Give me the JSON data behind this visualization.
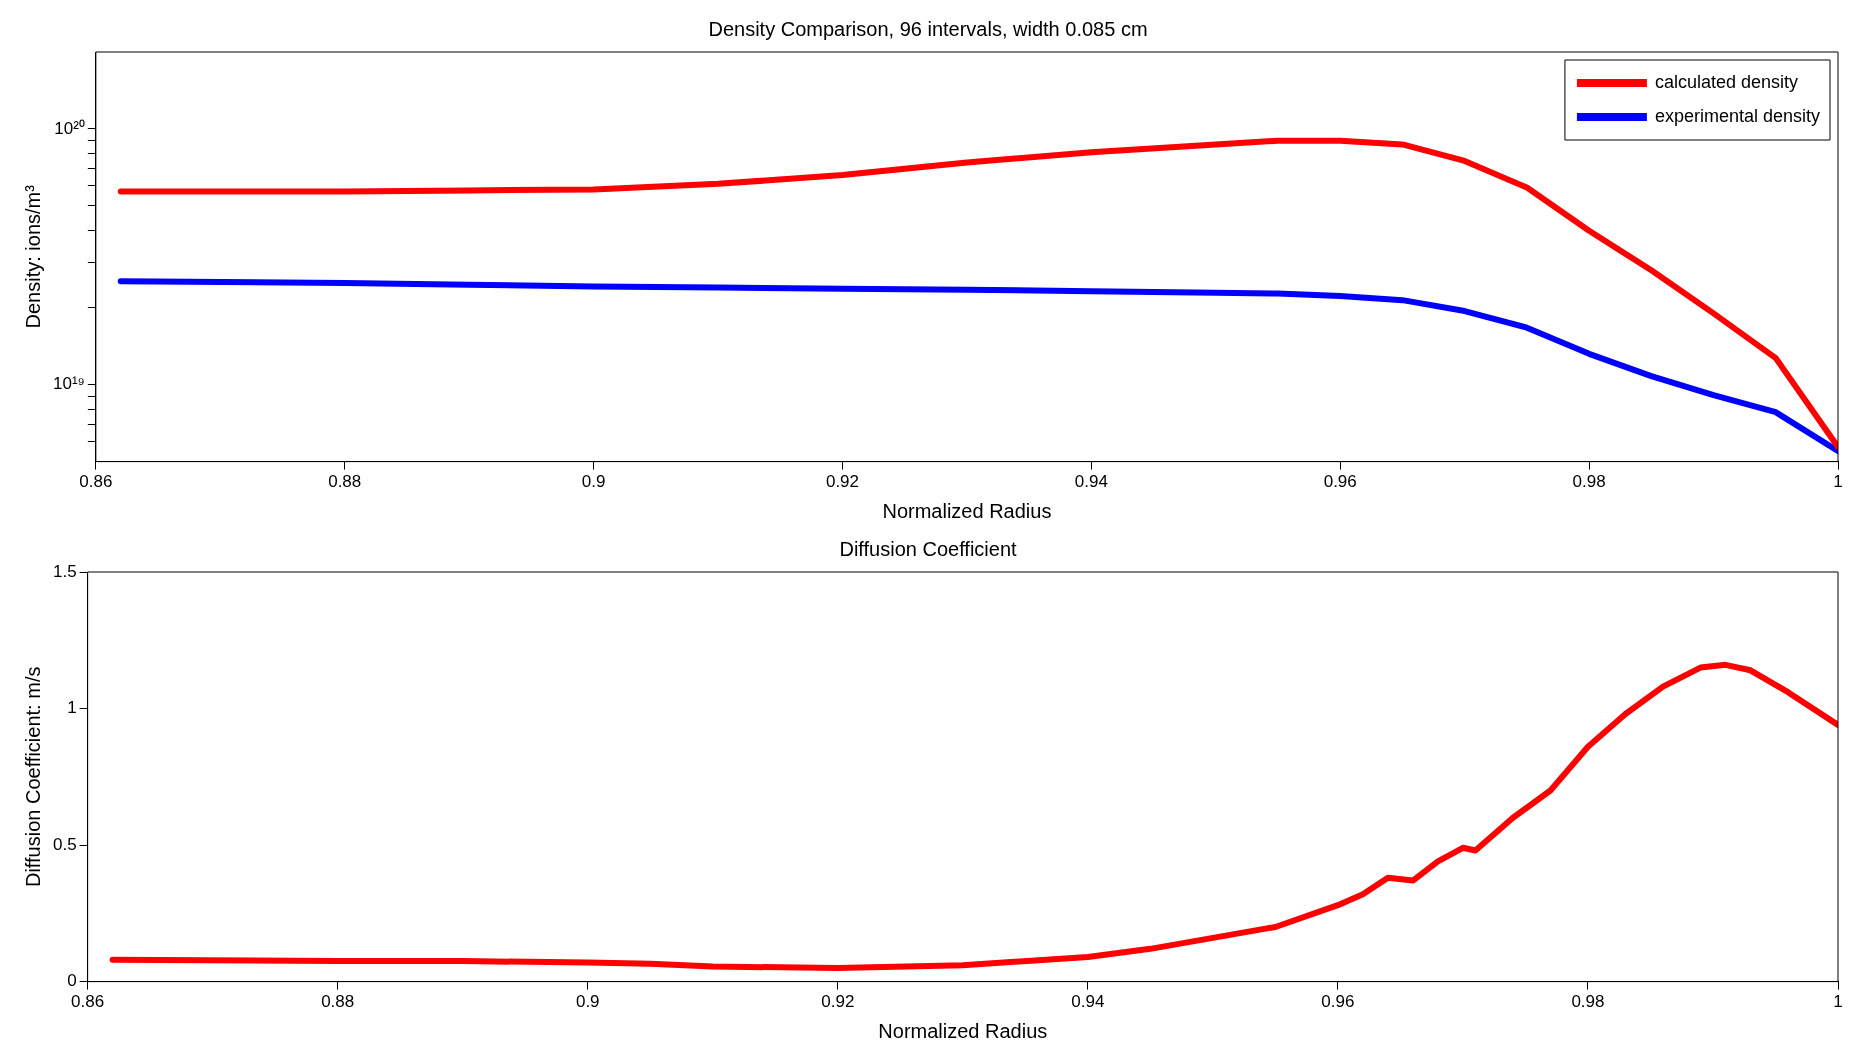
{
  "chart_data": [
    {
      "type": "line",
      "title": "Density Comparison, 96 intervals, width 0.085 cm",
      "xlabel": "Normalized Radius",
      "ylabel": "Density: ions/m³",
      "log": "y",
      "legend": "top right",
      "grid": false,
      "marker": "none",
      "line_style": "solid",
      "xlim": [
        0.86,
        1
      ],
      "xticks": [
        0.86,
        0.88,
        0.9,
        0.92,
        0.94,
        0.96,
        0.98,
        1
      ],
      "ylim": [
        5e+18,
        2e+20
      ],
      "yticks": [
        {
          "value": 6e+18,
          "label": null
        },
        {
          "value": 7e+18,
          "label": null
        },
        {
          "value": 8e+18,
          "label": null
        },
        {
          "value": 9e+18,
          "label": null
        },
        {
          "value": 1e+19,
          "label": "10¹⁹"
        },
        {
          "value": 2e+19,
          "label": null
        },
        {
          "value": 3e+19,
          "label": null
        },
        {
          "value": 4e+19,
          "label": null
        },
        {
          "value": 5e+19,
          "label": null
        },
        {
          "value": 6e+19,
          "label": null
        },
        {
          "value": 7e+19,
          "label": null
        },
        {
          "value": 8e+19,
          "label": null
        },
        {
          "value": 9e+19,
          "label": null
        },
        {
          "value": 1e+20,
          "label": "10²⁰"
        }
      ],
      "x": [
        0.862,
        0.88,
        0.89,
        0.9,
        0.91,
        0.92,
        0.93,
        0.94,
        0.95,
        0.955,
        0.96,
        0.965,
        0.97,
        0.975,
        0.98,
        0.985,
        0.99,
        0.995,
        1.0
      ],
      "series": [
        {
          "name": "calculated density",
          "color": "#ff0000",
          "values": [
            5.7e+19,
            5.7e+19,
            5.75e+19,
            5.8e+19,
            6.1e+19,
            6.6e+19,
            7.4e+19,
            8.1e+19,
            8.7e+19,
            9e+19,
            9e+19,
            8.7e+19,
            7.5e+19,
            5.9e+19,
            4e+19,
            2.8e+19,
            1.9e+19,
            1.27e+19,
            5.7e+18
          ]
        },
        {
          "name": "experimental density",
          "color": "#0000ff",
          "values": [
            2.54e+19,
            2.5e+19,
            2.46e+19,
            2.42e+19,
            2.4e+19,
            2.37e+19,
            2.35e+19,
            2.32e+19,
            2.29e+19,
            2.27e+19,
            2.22e+19,
            2.14e+19,
            1.94e+19,
            1.67e+19,
            1.32e+19,
            1.08e+19,
            9.1e+18,
            7.8e+18,
            5.5e+18
          ]
        }
      ]
    },
    {
      "type": "line",
      "title": "Diffusion Coefficient",
      "xlabel": "Normalized Radius",
      "ylabel": "Diffusion Coefficient: m/s",
      "grid": false,
      "marker": "none",
      "line_style": "solid",
      "xlim": [
        0.86,
        1
      ],
      "xticks": [
        0.86,
        0.88,
        0.9,
        0.92,
        0.94,
        0.96,
        0.98,
        1
      ],
      "ylim": [
        0,
        1.5
      ],
      "yticks": [
        0,
        0.5,
        1,
        1.5
      ],
      "x": [
        0.862,
        0.88,
        0.89,
        0.9,
        0.905,
        0.91,
        0.92,
        0.93,
        0.94,
        0.945,
        0.95,
        0.955,
        0.96,
        0.962,
        0.964,
        0.966,
        0.968,
        0.97,
        0.971,
        0.974,
        0.977,
        0.98,
        0.983,
        0.986,
        0.989,
        0.991,
        0.993,
        0.996,
        1.0
      ],
      "series": [
        {
          "color": "#ff0000",
          "values": [
            0.08,
            0.075,
            0.075,
            0.07,
            0.065,
            0.055,
            0.05,
            0.06,
            0.09,
            0.12,
            0.16,
            0.2,
            0.28,
            0.32,
            0.38,
            0.37,
            0.44,
            0.49,
            0.48,
            0.6,
            0.7,
            0.86,
            0.98,
            1.08,
            1.15,
            1.16,
            1.14,
            1.06,
            0.94
          ]
        }
      ]
    }
  ]
}
